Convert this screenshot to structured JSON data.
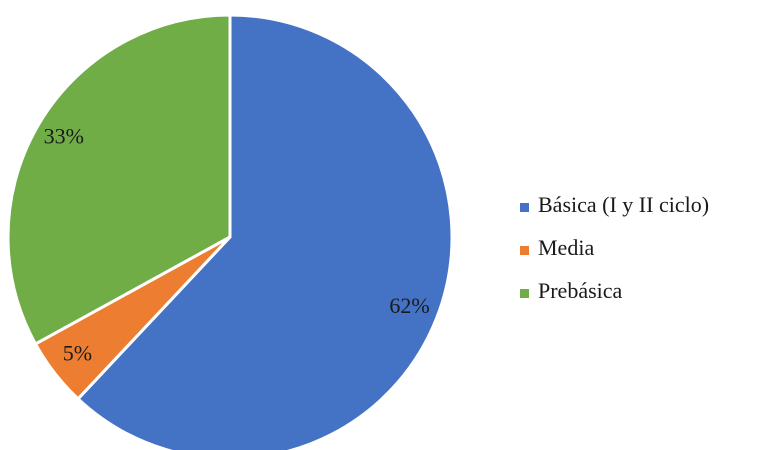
{
  "chart_data": {
    "type": "pie",
    "categories": [
      "Básica (I y II ciclo)",
      "Media",
      "Prebásica"
    ],
    "values": [
      62,
      5,
      33
    ],
    "value_labels": [
      "62%",
      "5%",
      "33%"
    ],
    "colors": [
      "#4472c4",
      "#ed7d31",
      "#70ad47"
    ],
    "legend": "right"
  }
}
